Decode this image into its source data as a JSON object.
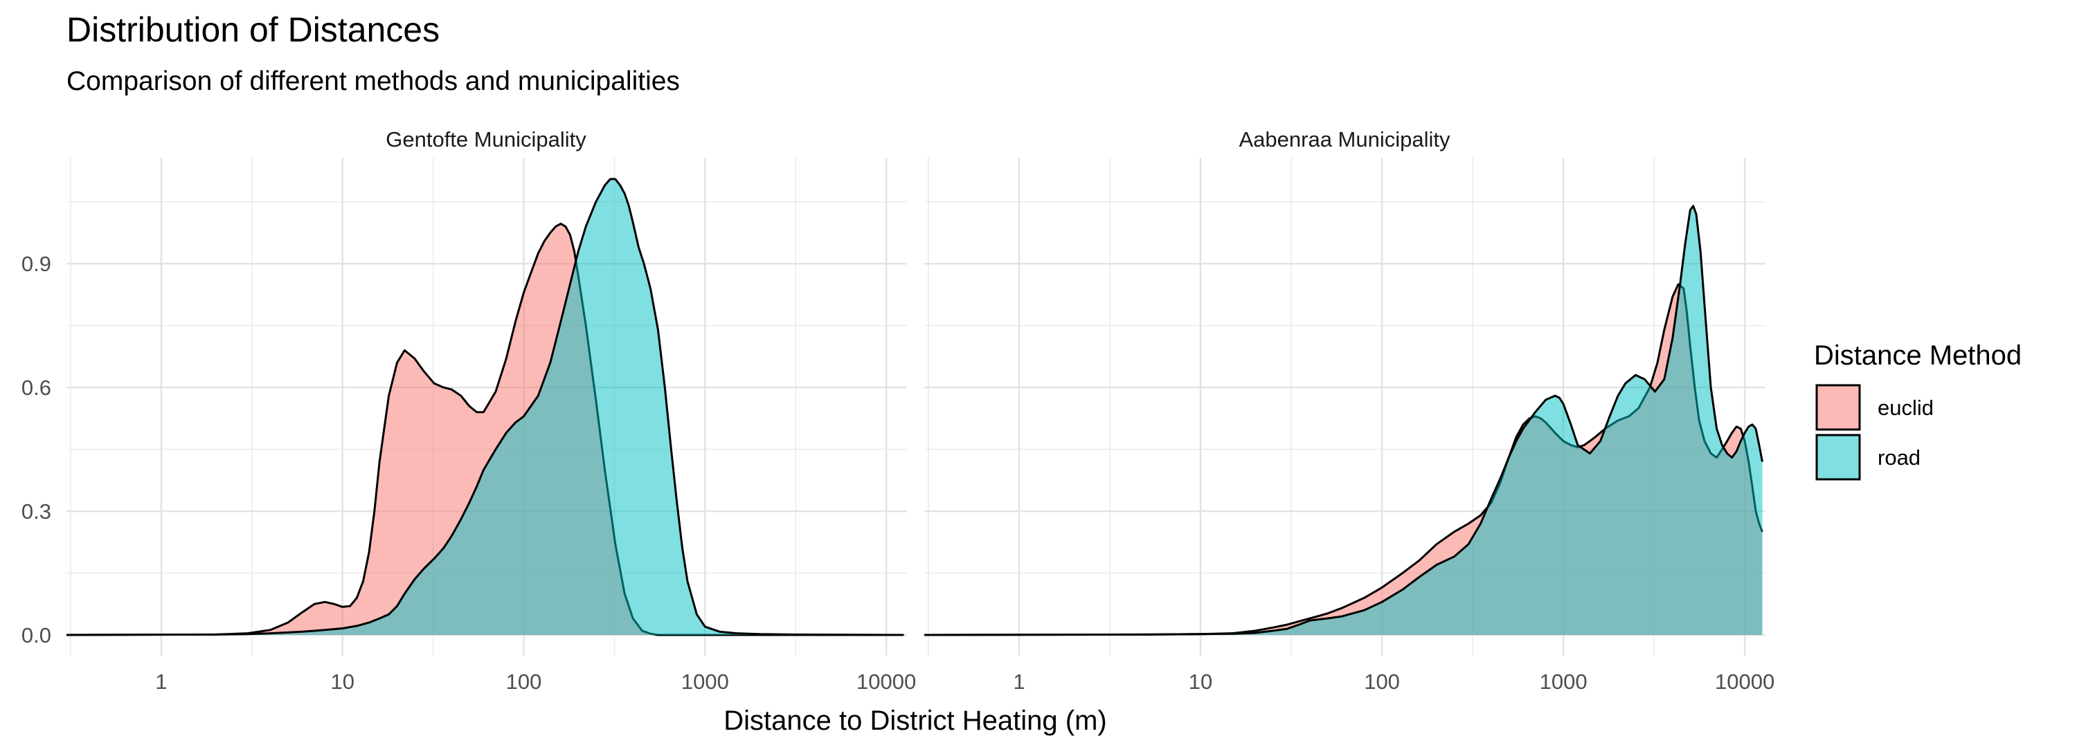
{
  "chart_data": {
    "type": "area",
    "title": "Distribution of Distances",
    "subtitle": "Comparison of different methods and municipalities",
    "xlabel": "Distance to District Heating (m)",
    "ylabel": "",
    "x_scale": "log10",
    "xlim": [
      0.3,
      13000
    ],
    "ylim": [
      0,
      1.12
    ],
    "x_ticks": [
      1,
      10,
      100,
      1000,
      10000
    ],
    "x_tick_labels": [
      "1",
      "10",
      "100",
      "1000",
      "10000"
    ],
    "y_ticks": [
      0.0,
      0.3,
      0.6,
      0.9
    ],
    "y_tick_labels": [
      "0.0",
      "0.3",
      "0.6",
      "0.9"
    ],
    "grid": true,
    "legend": {
      "title": "Distance Method",
      "placement": "right",
      "entries": [
        {
          "label": "euclid",
          "color": "#F8766D"
        },
        {
          "label": "road",
          "color": "#00BFC4"
        }
      ]
    },
    "panels": [
      {
        "title": "Gentofte Municipality",
        "series": [
          {
            "name": "euclid",
            "color": "#F8766D",
            "x": [
              0.3,
              2,
              3,
              4,
              5,
              6,
              7,
              8,
              9,
              10,
              11,
              12,
              13,
              14,
              15,
              16,
              18,
              20,
              22,
              25,
              28,
              32,
              36,
              40,
              45,
              50,
              55,
              60,
              70,
              80,
              90,
              100,
              110,
              120,
              130,
              140,
              150,
              160,
              170,
              180,
              190,
              200,
              220,
              250,
              280,
              320,
              360,
              400,
              450,
              500,
              550,
              600,
              700,
              800,
              1000,
              12500
            ],
            "y": [
              0,
              0.001,
              0.004,
              0.012,
              0.03,
              0.055,
              0.075,
              0.08,
              0.075,
              0.068,
              0.07,
              0.09,
              0.13,
              0.2,
              0.3,
              0.42,
              0.58,
              0.66,
              0.69,
              0.67,
              0.64,
              0.61,
              0.6,
              0.595,
              0.58,
              0.555,
              0.54,
              0.54,
              0.59,
              0.67,
              0.76,
              0.83,
              0.88,
              0.925,
              0.955,
              0.975,
              0.99,
              0.997,
              0.99,
              0.97,
              0.93,
              0.87,
              0.75,
              0.57,
              0.4,
              0.22,
              0.1,
              0.04,
              0.01,
              0.003,
              0,
              0,
              0,
              0,
              0,
              0
            ]
          },
          {
            "name": "road",
            "color": "#00BFC4",
            "x": [
              0.3,
              2,
              3,
              4,
              5,
              6,
              7,
              8,
              10,
              12,
              14,
              16,
              18,
              20,
              22,
              25,
              28,
              32,
              36,
              40,
              45,
              50,
              55,
              60,
              70,
              80,
              90,
              100,
              120,
              140,
              160,
              180,
              200,
              220,
              250,
              280,
              300,
              320,
              340,
              360,
              380,
              400,
              430,
              460,
              500,
              550,
              600,
              650,
              700,
              750,
              800,
              900,
              1000,
              1200,
              1500,
              2000,
              3000,
              12500
            ],
            "y": [
              0,
              0.001,
              0.002,
              0.004,
              0.006,
              0.008,
              0.01,
              0.012,
              0.016,
              0.022,
              0.03,
              0.04,
              0.05,
              0.07,
              0.1,
              0.135,
              0.16,
              0.185,
              0.21,
              0.24,
              0.28,
              0.32,
              0.36,
              0.4,
              0.45,
              0.49,
              0.515,
              0.53,
              0.58,
              0.66,
              0.76,
              0.85,
              0.93,
              0.99,
              1.05,
              1.09,
              1.105,
              1.105,
              1.09,
              1.07,
              1.04,
              1.0,
              0.94,
              0.9,
              0.84,
              0.74,
              0.6,
              0.45,
              0.32,
              0.21,
              0.13,
              0.05,
              0.02,
              0.008,
              0.004,
              0.002,
              0.001,
              0
            ]
          }
        ]
      },
      {
        "title": "Aabenraa Municipality",
        "series": [
          {
            "name": "euclid",
            "color": "#F8766D",
            "x": [
              0.3,
              5,
              10,
              15,
              20,
              25,
              30,
              40,
              50,
              60,
              80,
              100,
              130,
              160,
              200,
              250,
              300,
              350,
              400,
              450,
              500,
              550,
              600,
              650,
              700,
              750,
              800,
              900,
              1000,
              1100,
              1200,
              1300,
              1400,
              1500,
              1700,
              2000,
              2300,
              2600,
              3000,
              3300,
              3600,
              4000,
              4300,
              4600,
              4800,
              5000,
              5300,
              5600,
              6000,
              6500,
              7000,
              7500,
              8000,
              8500,
              9000,
              9500,
              10000,
              10500,
              11000,
              11500,
              12000,
              12500
            ],
            "y": [
              0,
              0.001,
              0.002,
              0.004,
              0.01,
              0.018,
              0.025,
              0.04,
              0.052,
              0.065,
              0.09,
              0.115,
              0.15,
              0.18,
              0.22,
              0.25,
              0.27,
              0.29,
              0.32,
              0.37,
              0.43,
              0.48,
              0.51,
              0.525,
              0.53,
              0.525,
              0.515,
              0.49,
              0.47,
              0.46,
              0.455,
              0.46,
              0.47,
              0.48,
              0.5,
              0.52,
              0.53,
              0.55,
              0.6,
              0.66,
              0.74,
              0.82,
              0.85,
              0.84,
              0.78,
              0.7,
              0.6,
              0.52,
              0.47,
              0.44,
              0.43,
              0.45,
              0.47,
              0.49,
              0.505,
              0.5,
              0.47,
              0.42,
              0.36,
              0.3,
              0.27,
              0.25
            ]
          },
          {
            "name": "road",
            "color": "#00BFC4",
            "x": [
              0.3,
              5,
              10,
              15,
              20,
              25,
              30,
              35,
              40,
              50,
              60,
              80,
              100,
              130,
              160,
              200,
              250,
              300,
              350,
              400,
              450,
              500,
              550,
              600,
              700,
              800,
              900,
              950,
              1000,
              1100,
              1200,
              1400,
              1600,
              1800,
              2000,
              2200,
              2500,
              2800,
              3200,
              3600,
              4000,
              4400,
              4700,
              5000,
              5200,
              5400,
              5700,
              6000,
              6500,
              7000,
              7500,
              8000,
              8500,
              9000,
              9500,
              10000,
              10500,
              11000,
              11500,
              12000,
              12500
            ],
            "y": [
              0,
              0.001,
              0.002,
              0.003,
              0.005,
              0.01,
              0.015,
              0.025,
              0.035,
              0.04,
              0.045,
              0.06,
              0.08,
              0.11,
              0.14,
              0.17,
              0.19,
              0.22,
              0.27,
              0.33,
              0.38,
              0.43,
              0.47,
              0.5,
              0.54,
              0.57,
              0.58,
              0.575,
              0.56,
              0.51,
              0.46,
              0.44,
              0.47,
              0.53,
              0.58,
              0.61,
              0.63,
              0.62,
              0.59,
              0.62,
              0.72,
              0.85,
              0.95,
              1.03,
              1.04,
              1.02,
              0.93,
              0.8,
              0.6,
              0.5,
              0.46,
              0.44,
              0.43,
              0.445,
              0.47,
              0.49,
              0.505,
              0.51,
              0.5,
              0.46,
              0.42
            ]
          }
        ]
      }
    ]
  }
}
